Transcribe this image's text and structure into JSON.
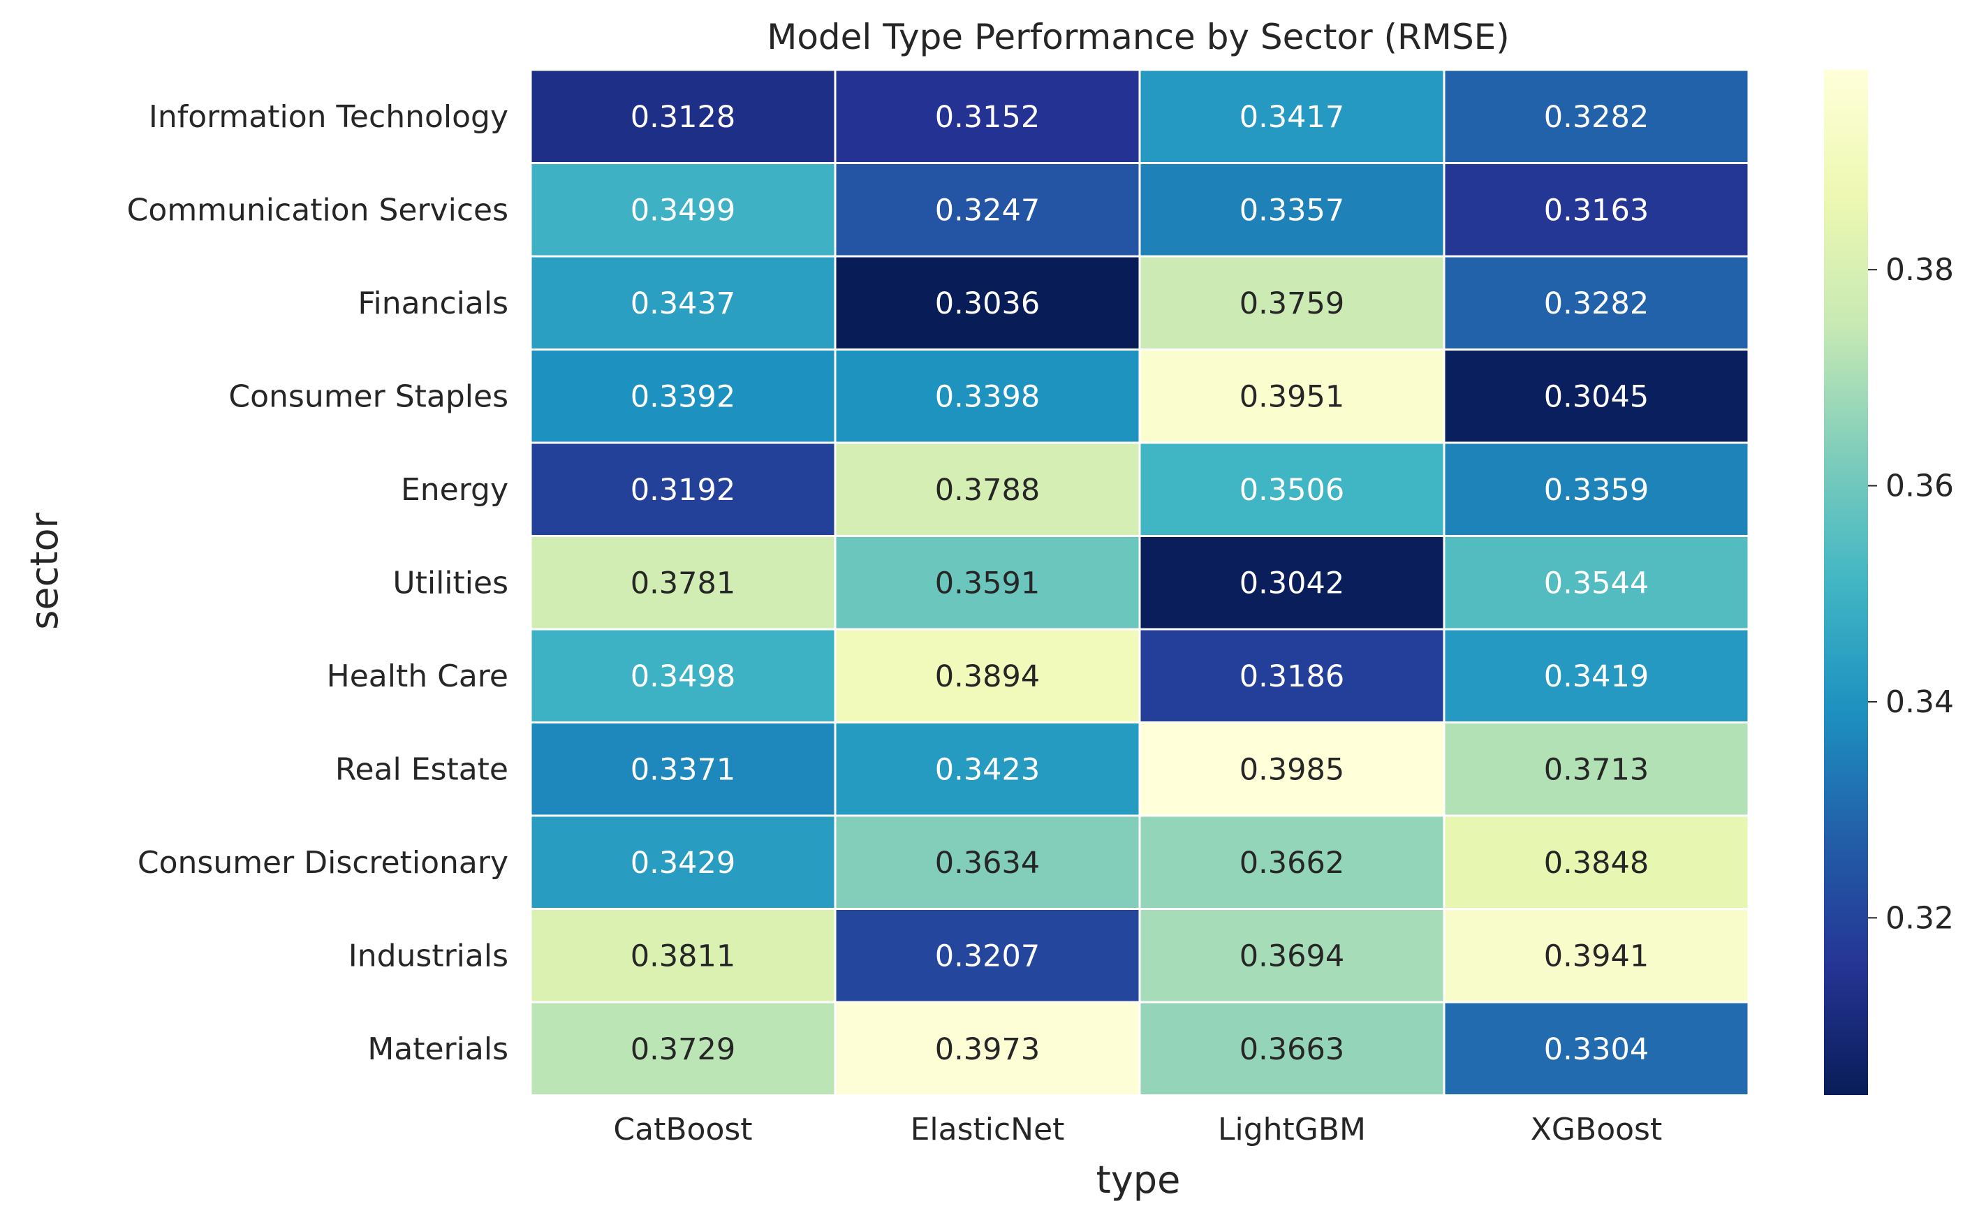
{
  "chart_data": {
    "type": "heatmap",
    "title": "Model Type Performance by Sector (RMSE)",
    "xlabel": "type",
    "ylabel": "sector",
    "columns": [
      "CatBoost",
      "ElasticNet",
      "LightGBM",
      "XGBoost"
    ],
    "rows": [
      "Information Technology",
      "Communication Services",
      "Financials",
      "Consumer Staples",
      "Energy",
      "Utilities",
      "Health Care",
      "Real Estate",
      "Consumer Discretionary",
      "Industrials",
      "Materials"
    ],
    "values": [
      [
        0.3128,
        0.3152,
        0.3417,
        0.3282
      ],
      [
        0.3499,
        0.3247,
        0.3357,
        0.3163
      ],
      [
        0.3437,
        0.3036,
        0.3759,
        0.3282
      ],
      [
        0.3392,
        0.3398,
        0.3951,
        0.3045
      ],
      [
        0.3192,
        0.3788,
        0.3506,
        0.3359
      ],
      [
        0.3781,
        0.3591,
        0.3042,
        0.3544
      ],
      [
        0.3498,
        0.3894,
        0.3186,
        0.3419
      ],
      [
        0.3371,
        0.3423,
        0.3985,
        0.3713
      ],
      [
        0.3429,
        0.3634,
        0.3662,
        0.3848
      ],
      [
        0.3811,
        0.3207,
        0.3694,
        0.3941
      ],
      [
        0.3729,
        0.3973,
        0.3663,
        0.3304
      ]
    ],
    "colormap": "YlGnBu",
    "vmin": 0.3036,
    "vmax": 0.3985,
    "colorbar_ticks": [
      "0.32",
      "0.34",
      "0.36",
      "0.38"
    ],
    "legend": "colorbar-right",
    "text_color_dark": "#262626",
    "text_color_light": "#ffffff"
  }
}
